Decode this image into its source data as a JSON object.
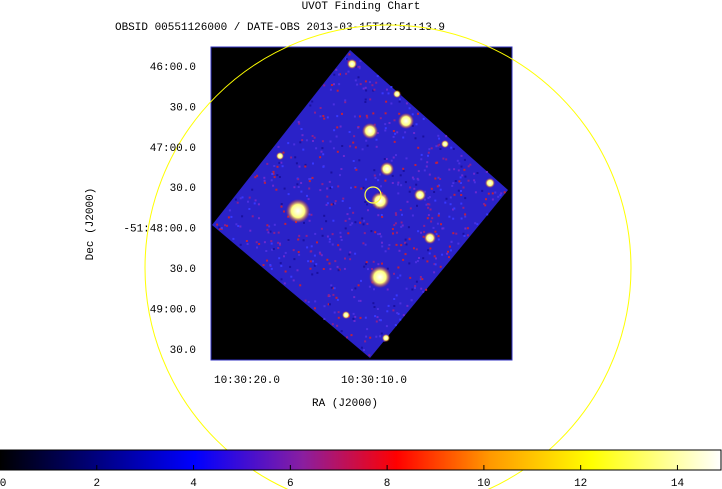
{
  "title": "UVOT Finding Chart",
  "subtitle": "OBSID 00551126000 / DATE-OBS 2013-03-15T12:51:13.9",
  "x_axis": {
    "label": "RA (J2000)",
    "tick_labels": [
      "10:30:20.0",
      "10:30:10.0"
    ]
  },
  "y_axis": {
    "label": "Dec (J2000)",
    "tick_labels": [
      "46:00.0",
      "30.0",
      "47:00.0",
      "30.0",
      "-51:48:00.0",
      "30.0",
      "49:00.0",
      "30.0"
    ]
  },
  "colorbar": {
    "lim": [
      0,
      14.9
    ],
    "ticks": [
      0,
      2,
      4,
      6,
      8,
      10,
      12,
      14
    ]
  }
}
